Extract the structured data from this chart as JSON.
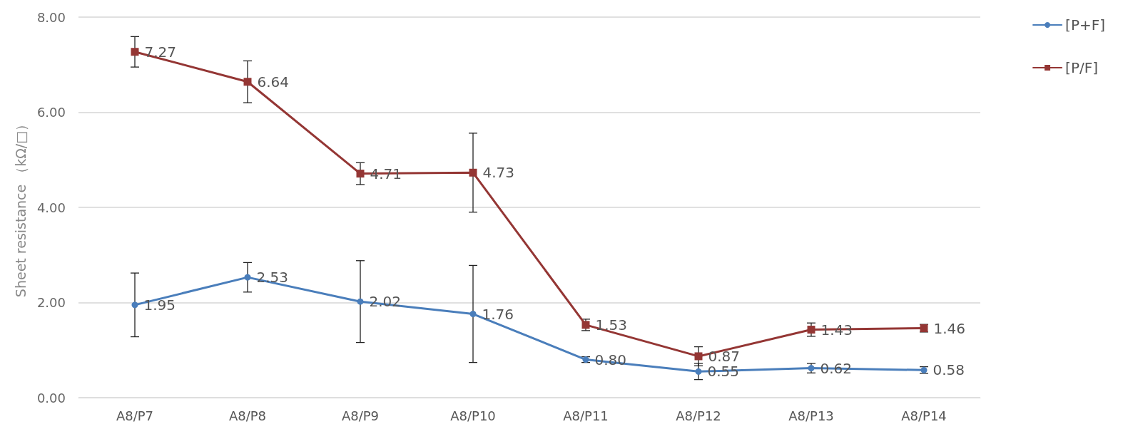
{
  "chart_data": {
    "type": "line",
    "ylabel": "Sheet resistance （kΩ/□）",
    "categories": [
      "A8/P7",
      "A8/P8",
      "A8/P9",
      "A8/P10",
      "A8/P11",
      "A8/P12",
      "A8/P13",
      "A8/P14"
    ],
    "series": [
      {
        "name": "[P+F]",
        "color": "#4a7ebb",
        "marker": "circle",
        "values": [
          1.95,
          2.53,
          2.02,
          1.76,
          0.8,
          0.55,
          0.62,
          0.58
        ],
        "errors": [
          0.67,
          0.31,
          0.86,
          1.02,
          0.06,
          0.17,
          0.1,
          0.07
        ],
        "value_labels": [
          "1.95",
          "2.53",
          "2.02",
          "1.76",
          "0.80",
          "0.55",
          "0.62",
          "0.58"
        ]
      },
      {
        "name": "[P/F]",
        "color": "#943634",
        "marker": "square",
        "values": [
          7.27,
          6.64,
          4.71,
          4.73,
          1.53,
          0.87,
          1.43,
          1.46
        ],
        "errors": [
          0.32,
          0.44,
          0.23,
          0.83,
          0.12,
          0.2,
          0.14,
          0.08
        ],
        "value_labels": [
          "7.27",
          "6.64",
          "4.71",
          "4.73",
          "1.53",
          "0.87",
          "1.43",
          "1.46"
        ]
      }
    ],
    "ylim": [
      0,
      8
    ],
    "yticks": [
      {
        "value": 0,
        "label": "0.00"
      },
      {
        "value": 2,
        "label": "2.00"
      },
      {
        "value": 4,
        "label": "4.00"
      },
      {
        "value": 6,
        "label": "6.00"
      },
      {
        "value": 8,
        "label": "8.00"
      }
    ],
    "grid": "y",
    "legend": "top right",
    "line_style": "solid"
  }
}
